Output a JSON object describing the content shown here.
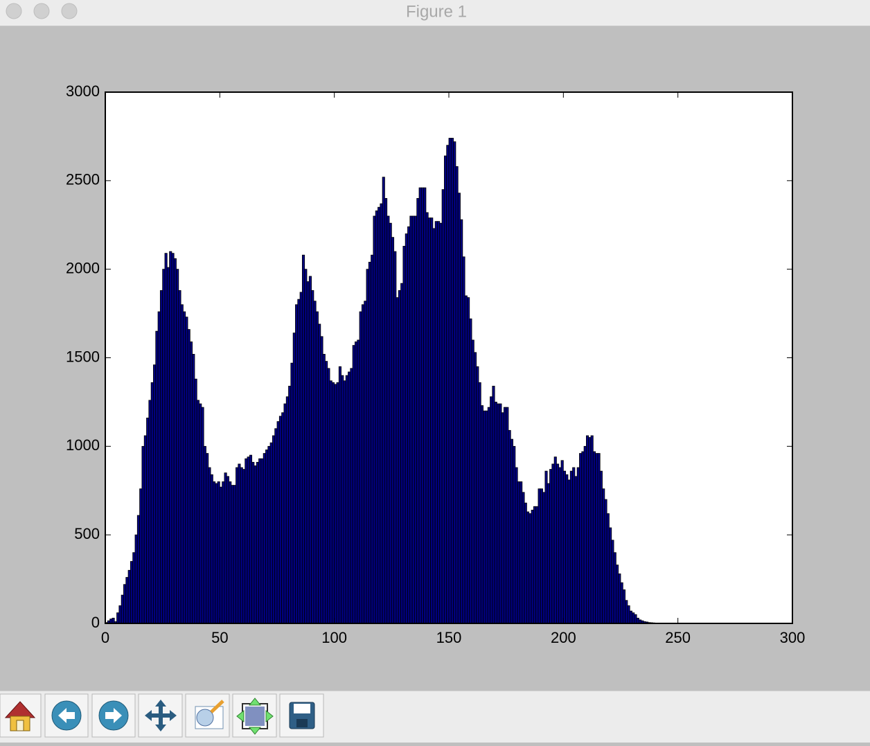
{
  "window": {
    "title": "Figure 1"
  },
  "chart_data": {
    "type": "histogram",
    "bins": [
      0,
      1,
      2,
      3,
      4,
      5,
      6,
      7,
      8,
      9,
      10,
      11,
      12,
      13,
      14,
      15,
      16,
      17,
      18,
      19,
      20,
      21,
      22,
      23,
      24,
      25,
      26,
      27,
      28,
      29,
      30,
      31,
      32,
      33,
      34,
      35,
      36,
      37,
      38,
      39,
      40,
      41,
      42,
      43,
      44,
      45,
      46,
      47,
      48,
      49,
      50,
      51,
      52,
      53,
      54,
      55,
      56,
      57,
      58,
      59,
      60,
      61,
      62,
      63,
      64,
      65,
      66,
      67,
      68,
      69,
      70,
      71,
      72,
      73,
      74,
      75,
      76,
      77,
      78,
      79,
      80,
      81,
      82,
      83,
      84,
      85,
      86,
      87,
      88,
      89,
      90,
      91,
      92,
      93,
      94,
      95,
      96,
      97,
      98,
      99,
      100,
      101,
      102,
      103,
      104,
      105,
      106,
      107,
      108,
      109,
      110,
      111,
      112,
      113,
      114,
      115,
      116,
      117,
      118,
      119,
      120,
      121,
      122,
      123,
      124,
      125,
      126,
      127,
      128,
      129,
      130,
      131,
      132,
      133,
      134,
      135,
      136,
      137,
      138,
      139,
      140,
      141,
      142,
      143,
      144,
      145,
      146,
      147,
      148,
      149,
      150,
      151,
      152,
      153,
      154,
      155,
      156,
      157,
      158,
      159,
      160,
      161,
      162,
      163,
      164,
      165,
      166,
      167,
      168,
      169,
      170,
      171,
      172,
      173,
      174,
      175,
      176,
      177,
      178,
      179,
      180,
      181,
      182,
      183,
      184,
      185,
      186,
      187,
      188,
      189,
      190,
      191,
      192,
      193,
      194,
      195,
      196,
      197,
      198,
      199,
      200,
      201,
      202,
      203,
      204,
      205,
      206,
      207,
      208,
      209,
      210,
      211,
      212,
      213,
      214,
      215,
      216,
      217,
      218,
      219,
      220,
      221,
      222,
      223,
      224,
      225,
      226,
      227,
      228,
      229,
      230,
      231,
      232,
      233,
      234,
      235,
      236,
      237,
      238,
      239,
      240,
      241,
      242,
      243,
      244,
      245,
      246,
      247,
      248,
      249,
      250,
      251,
      252,
      253,
      254,
      255,
      256
    ],
    "values": [
      5,
      15,
      25,
      30,
      10,
      60,
      100,
      160,
      220,
      260,
      300,
      350,
      400,
      500,
      610,
      760,
      1000,
      1060,
      1160,
      1260,
      1360,
      1460,
      1650,
      1760,
      1880,
      2000,
      2090,
      2010,
      2100,
      2090,
      2060,
      2000,
      1880,
      1800,
      1760,
      1730,
      1660,
      1590,
      1520,
      1380,
      1260,
      1240,
      1220,
      1000,
      960,
      880,
      840,
      800,
      790,
      800,
      770,
      800,
      850,
      830,
      800,
      780,
      780,
      880,
      900,
      880,
      870,
      930,
      940,
      950,
      910,
      890,
      910,
      930,
      930,
      960,
      980,
      1000,
      1020,
      1060,
      1100,
      1140,
      1170,
      1190,
      1240,
      1280,
      1340,
      1470,
      1640,
      1800,
      1830,
      1870,
      2080,
      2000,
      1930,
      1960,
      1880,
      1820,
      1760,
      1690,
      1620,
      1520,
      1480,
      1440,
      1370,
      1360,
      1350,
      1360,
      1450,
      1400,
      1370,
      1400,
      1420,
      1440,
      1570,
      1590,
      1600,
      1760,
      1800,
      1820,
      2000,
      2040,
      2080,
      2300,
      2330,
      2350,
      2370,
      2520,
      2400,
      2300,
      2260,
      2180,
      2100,
      1840,
      1880,
      1920,
      2130,
      2200,
      2240,
      2300,
      2300,
      2300,
      2400,
      2460,
      2460,
      2460,
      2320,
      2290,
      2290,
      2230,
      2270,
      2270,
      2260,
      2450,
      2640,
      2700,
      2740,
      2740,
      2720,
      2580,
      2430,
      2280,
      2070,
      1850,
      1840,
      1720,
      1600,
      1530,
      1450,
      1360,
      1230,
      1200,
      1200,
      1220,
      1280,
      1340,
      1250,
      1240,
      1240,
      1190,
      1220,
      1220,
      1090,
      1040,
      1000,
      880,
      800,
      800,
      740,
      680,
      630,
      620,
      640,
      660,
      660,
      760,
      760,
      740,
      860,
      790,
      870,
      900,
      940,
      900,
      880,
      920,
      860,
      840,
      810,
      860,
      880,
      830,
      880,
      960,
      970,
      1000,
      1060,
      1050,
      1060,
      970,
      960,
      960,
      860,
      760,
      700,
      620,
      540,
      470,
      400,
      330,
      280,
      230,
      190,
      130,
      100,
      70,
      60,
      50,
      30,
      20,
      15,
      10,
      8,
      5,
      4,
      3,
      2,
      2,
      1,
      1,
      1,
      0,
      0,
      0,
      0,
      0,
      0,
      0,
      0,
      0,
      0,
      0
    ],
    "color": "#00007f",
    "xlim": [
      0,
      300
    ],
    "xticks": [
      0,
      50,
      100,
      150,
      200,
      250,
      300
    ],
    "ylim": [
      0,
      3000
    ],
    "yticks": [
      0,
      500,
      1000,
      1500,
      2000,
      2500,
      3000
    ],
    "grid": false
  }
}
